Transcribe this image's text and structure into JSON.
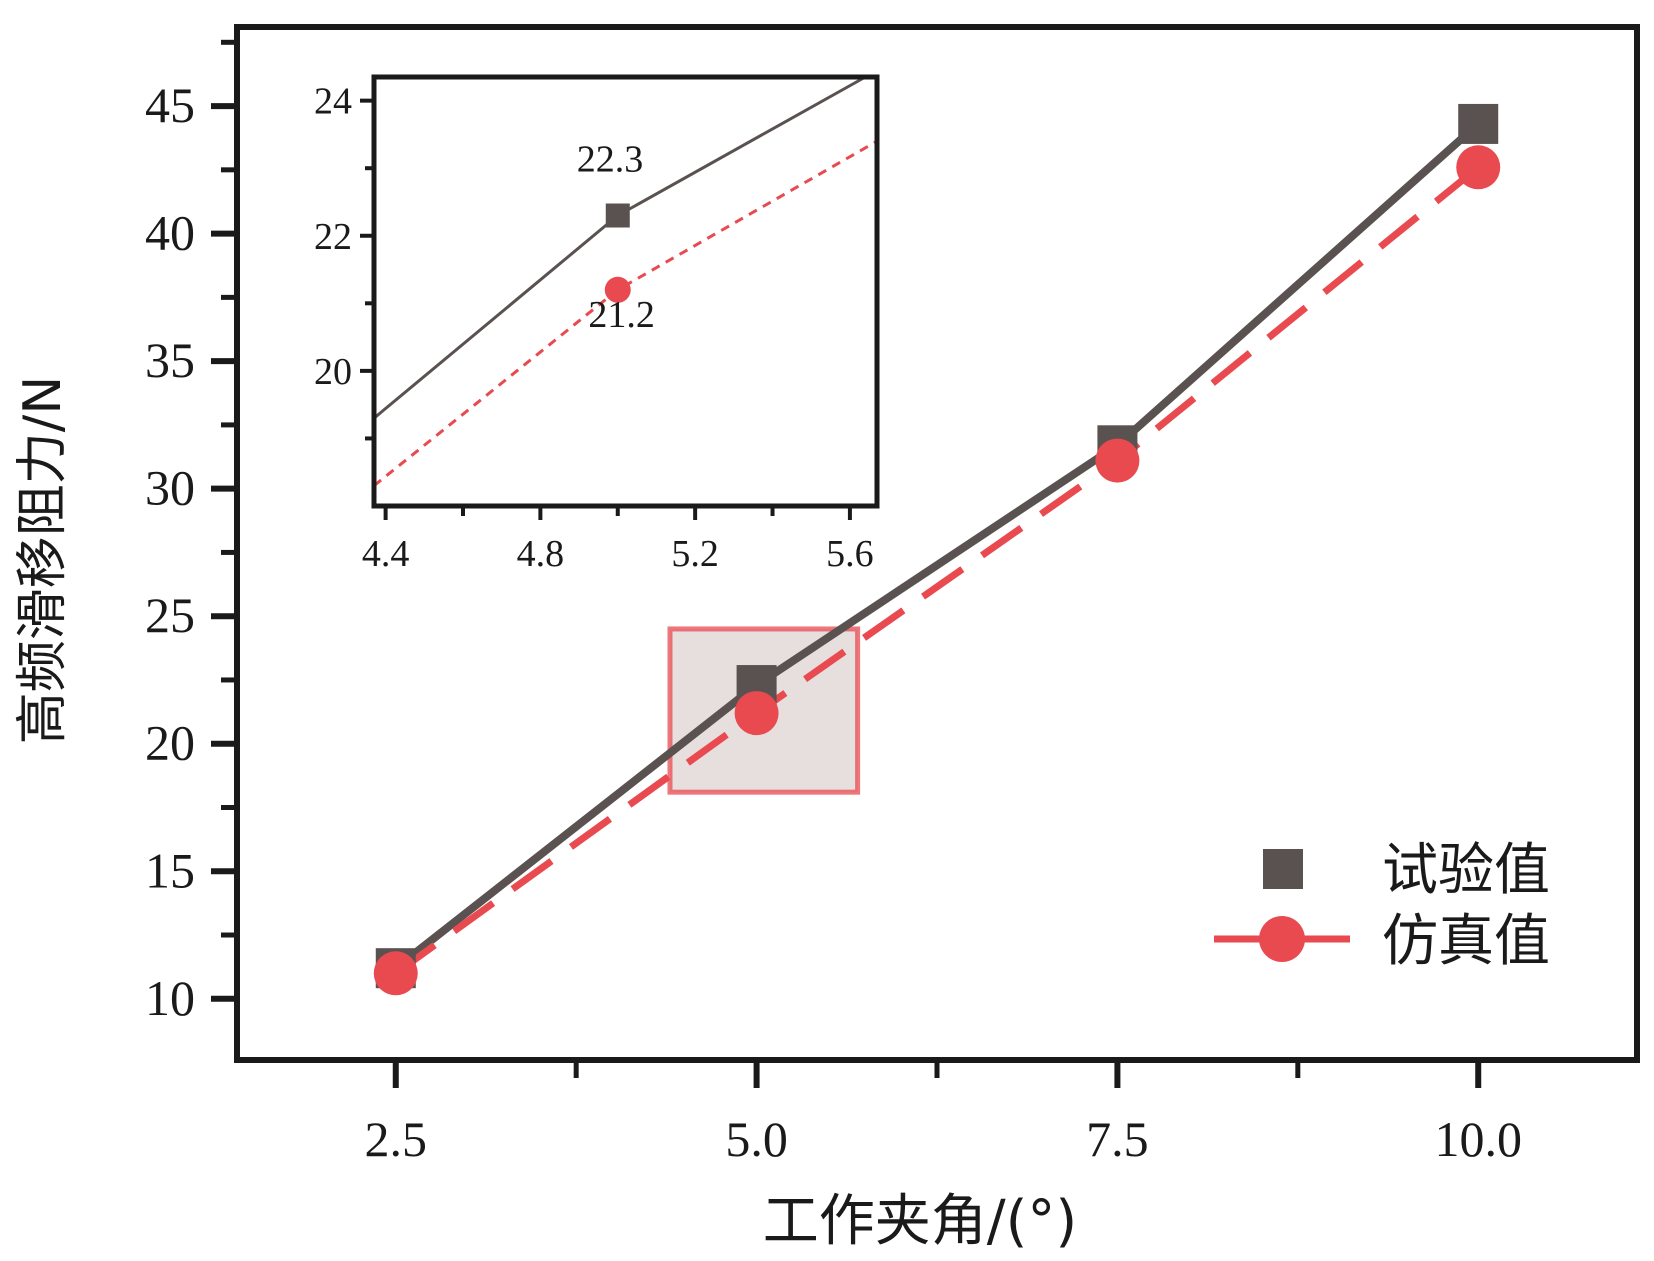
{
  "chart_data": {
    "type": "line",
    "xlabel": "工作夹角/(°)",
    "ylabel": "高频滑移阻力/N",
    "x": [
      2.5,
      5.0,
      7.5,
      10.0
    ],
    "x_tick_labels": [
      "2.5",
      "5.0",
      "7.5",
      "10.0"
    ],
    "y_tick_labels": [
      "10",
      "15",
      "20",
      "25",
      "30",
      "35",
      "40",
      "45"
    ],
    "xlim": [
      1.4,
      11.1
    ],
    "ylim": [
      7.6,
      48.1
    ],
    "grid": false,
    "legend_position": "bottom-right",
    "series": [
      {
        "name": "试验值",
        "values": [
          11.2,
          22.3,
          31.7,
          44.3
        ],
        "color": "#595250",
        "marker": "square",
        "line": "solid"
      },
      {
        "name": "仿真值",
        "values": [
          11.0,
          21.2,
          31.1,
          42.6
        ],
        "color": "#e84a50",
        "marker": "circle",
        "line": "dashed"
      }
    ],
    "highlight_region": {
      "x": [
        4.4,
        5.7
      ],
      "y": [
        18.1,
        24.5
      ],
      "color": "#e84a50"
    },
    "inset": {
      "xlim": [
        4.37,
        5.67
      ],
      "ylim": [
        18.0,
        24.35
      ],
      "x_tick_labels": [
        "4.4",
        "4.8",
        "5.2",
        "5.6"
      ],
      "y_tick_labels": [
        "20",
        "22",
        "24"
      ],
      "series": [
        {
          "name": "试验值",
          "x": [
            4.37,
            5.0,
            5.64
          ],
          "values": [
            19.3,
            22.3,
            24.35
          ],
          "marker_index": 1
        },
        {
          "name": "仿真值",
          "x": [
            4.37,
            5.0,
            5.67
          ],
          "values": [
            18.3,
            21.2,
            23.4
          ],
          "marker_index": 1
        }
      ],
      "annotations": [
        {
          "text": "22.3",
          "x": 4.98,
          "y": 22.95
        },
        {
          "text": "21.2",
          "x": 5.01,
          "y": 20.65
        }
      ]
    }
  }
}
